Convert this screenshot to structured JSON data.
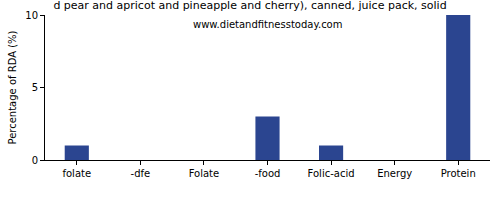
{
  "chart_data": {
    "type": "bar",
    "title": "d pear and apricot and pineapple and cherry), canned, juice pack, solid",
    "subtitle": "www.dietandfitnesstoday.com",
    "y_label": "Percentage of RDA (%)",
    "categories": [
      "folate",
      "-dfe",
      "Folate",
      "-food",
      "Folic-acid",
      "Energy",
      "Protein"
    ],
    "values": [
      1,
      0,
      0,
      3,
      1,
      0,
      10
    ],
    "color": "#2b4590",
    "ylim": [
      0,
      10
    ],
    "yticks": [
      0,
      5,
      10
    ],
    "grid": false
  }
}
